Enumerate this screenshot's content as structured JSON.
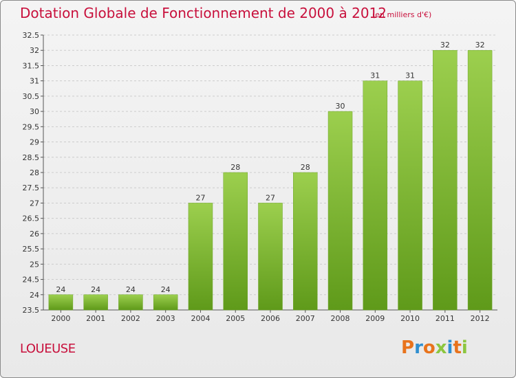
{
  "header": {
    "title": "Dotation Globale de Fonctionnement de 2000 à 2012",
    "unit": "(en milliers d'€)"
  },
  "footer": {
    "commune": "LOUEUSE",
    "logo_text": "Proxiti",
    "logo_colors": [
      "#e8731c",
      "#2f8fd0",
      "#e8731c",
      "#8cc63f",
      "#2f8fd0",
      "#e8731c",
      "#8cc63f"
    ]
  },
  "colors": {
    "accent": "#c8103c",
    "bar_top": "#9ccf4e",
    "bar_bottom": "#5f9a1a",
    "grid": "#cccccc",
    "axis": "#555555"
  },
  "chart_data": {
    "type": "bar",
    "categories": [
      "2000",
      "2001",
      "2002",
      "2003",
      "2004",
      "2005",
      "2006",
      "2007",
      "2008",
      "2009",
      "2010",
      "2011",
      "2012"
    ],
    "values": [
      24,
      24,
      24,
      24,
      27,
      28,
      27,
      28,
      30,
      31,
      31,
      32,
      32
    ],
    "ylim": [
      23.5,
      32.5
    ],
    "yticks": [
      "23.5",
      "24",
      "24.5",
      "25",
      "25.5",
      "26",
      "26.5",
      "27",
      "27.5",
      "28",
      "28.5",
      "29",
      "29.5",
      "30",
      "30.5",
      "31",
      "31.5",
      "32",
      "32.5"
    ],
    "grid": "horizontal dashed",
    "title": "Dotation Globale de Fonctionnement de 2000 à 2012",
    "xlabel": "",
    "ylabel": ""
  }
}
